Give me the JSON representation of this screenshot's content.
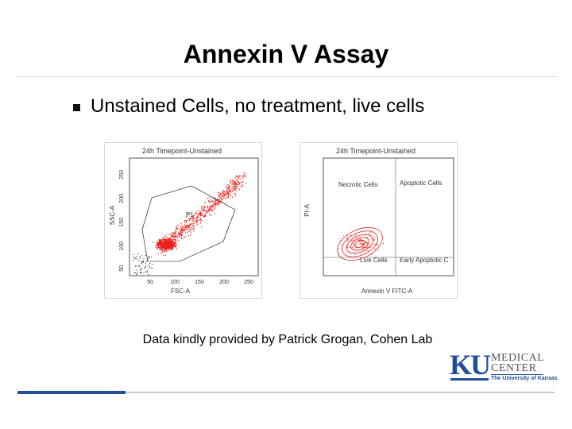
{
  "slide": {
    "title": "Annexin V Assay",
    "bullet": "Unstained Cells, no treatment, live cells",
    "credit": "Data kindly provided by Patrick Grogan, Cohen Lab"
  },
  "plot_left": {
    "title": "24h Timepoint-Unstained",
    "xlabel": "FSC-A",
    "ylabel": "SSC-A",
    "gate_label": "P1",
    "x_ticks": [
      "50",
      "100",
      "150",
      "200",
      "250"
    ],
    "y_ticks": [
      "50",
      "100",
      "150",
      "200",
      "250"
    ],
    "dot_color": "#e8231e"
  },
  "plot_right": {
    "title": "24h Timepoint-Unstained",
    "xlabel": "Annexin V FITC-A",
    "ylabel": "PI-A",
    "quadrants": {
      "upper_left": "Necrotic Cells",
      "upper_right": "Apoptotic Cells",
      "lower_left": "Live Cells",
      "lower_right": "Early Apoptotic C"
    },
    "contour_color": "#e8231e"
  },
  "logo": {
    "mark": "KU",
    "line1": "MEDICAL",
    "line2": "CENTER",
    "sub": "The University of Kansas",
    "color": "#1f4e9c"
  }
}
